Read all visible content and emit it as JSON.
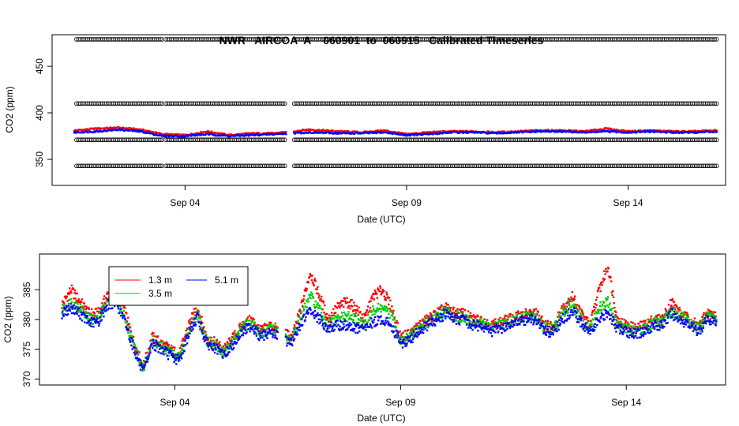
{
  "chart_data": [
    {
      "type": "scatter",
      "title": "NWR   AIRCOA  A    060901  to  060915   Calibrated Timeseries",
      "xlabel": "Date (UTC)",
      "ylabel": "CO2 (ppm)",
      "xlim": [
        1.0,
        16.2
      ],
      "ylim": [
        322,
        484
      ],
      "xticks": [
        {
          "value": 4,
          "label": "Sep 04"
        },
        {
          "value": 9,
          "label": "Sep 09"
        },
        {
          "value": 14,
          "label": "Sep 14"
        }
      ],
      "yticks": [
        350,
        400,
        450
      ],
      "gaps": [
        [
          6.28,
          6.45
        ]
      ],
      "standards": [
        {
          "name": "std-high",
          "value": 479,
          "color": "#000000",
          "marker": "circle"
        },
        {
          "name": "std-mid",
          "value": 410,
          "color": "#000000",
          "marker": "circle"
        },
        {
          "name": "std-low2",
          "value": 371,
          "color": "#000000",
          "marker": "circle"
        },
        {
          "name": "std-low",
          "value": 343,
          "color": "#000000",
          "marker": "circle"
        }
      ],
      "series": [
        {
          "name": "sample-red",
          "color": "#ff0000",
          "x": [
            1.5,
            2.0,
            2.5,
            3.0,
            3.5,
            4.0,
            4.5,
            5.0,
            5.5,
            6.0,
            6.8,
            7.5,
            8.0,
            8.5,
            9.0,
            9.5,
            10.0,
            10.5,
            11.0,
            11.5,
            12.0,
            12.5,
            13.0,
            13.5,
            14.0,
            14.5,
            15.0,
            15.5,
            16.0
          ],
          "y": [
            381,
            383,
            384,
            382,
            377,
            376,
            380,
            376,
            378,
            378,
            382,
            380,
            379,
            381,
            377,
            379,
            380,
            380,
            379,
            380,
            381,
            381,
            380,
            383,
            380,
            381,
            380,
            380,
            381
          ]
        },
        {
          "name": "sample-blue",
          "color": "#0000ff",
          "x": [
            1.5,
            2.0,
            2.5,
            3.0,
            3.5,
            4.0,
            4.5,
            5.0,
            5.5,
            6.0,
            6.8,
            7.5,
            8.0,
            8.5,
            9.0,
            9.5,
            10.0,
            10.5,
            11.0,
            11.5,
            12.0,
            12.5,
            13.0,
            13.5,
            14.0,
            14.5,
            15.0,
            15.5,
            16.0
          ],
          "y": [
            379,
            380,
            382,
            380,
            375,
            375,
            377,
            375,
            376,
            377,
            379,
            378,
            378,
            379,
            376,
            377,
            379,
            379,
            378,
            379,
            380,
            380,
            379,
            380,
            379,
            380,
            379,
            379,
            380
          ]
        }
      ]
    },
    {
      "type": "scatter",
      "title": "",
      "xlabel": "Date (UTC)",
      "ylabel": "CO2 (ppm)",
      "xlim": [
        1.0,
        16.2
      ],
      "ylim": [
        369,
        391
      ],
      "xticks": [
        {
          "value": 4,
          "label": "Sep 04"
        },
        {
          "value": 9,
          "label": "Sep 09"
        },
        {
          "value": 14,
          "label": "Sep 14"
        }
      ],
      "yticks": [
        370,
        375,
        380,
        385
      ],
      "gaps": [
        [
          6.28,
          6.45
        ]
      ],
      "legend": {
        "placement": "top-left",
        "entries": [
          {
            "label": "1.3 m",
            "color": "#ff0000"
          },
          {
            "label": "3.5 m",
            "color": "#00cc00"
          },
          {
            "label": "5.1 m",
            "color": "#0000ff"
          }
        ]
      },
      "series": [
        {
          "name": "1.3 m",
          "color": "#ff0000",
          "x": [
            1.5,
            1.7,
            1.9,
            2.1,
            2.3,
            2.5,
            2.7,
            2.9,
            3.1,
            3.3,
            3.5,
            3.7,
            3.9,
            4.1,
            4.3,
            4.5,
            4.7,
            4.9,
            5.1,
            5.3,
            5.5,
            5.7,
            5.9,
            6.1,
            6.6,
            6.8,
            7.0,
            7.2,
            7.4,
            7.6,
            7.8,
            8.0,
            8.2,
            8.4,
            8.6,
            8.8,
            9.0,
            9.2,
            9.4,
            9.6,
            9.8,
            10.0,
            10.2,
            10.4,
            10.6,
            10.8,
            11.0,
            11.2,
            11.4,
            11.6,
            11.8,
            12.0,
            12.2,
            12.4,
            12.6,
            12.8,
            13.0,
            13.2,
            13.4,
            13.6,
            13.8,
            14.0,
            14.2,
            14.4,
            14.6,
            14.8,
            15.0,
            15.2,
            15.4,
            15.6,
            15.8,
            16.0
          ],
          "y": [
            382.5,
            385,
            383,
            381,
            381,
            384,
            386,
            381,
            376,
            372,
            377,
            376,
            375,
            374,
            379,
            382,
            377,
            376,
            375,
            377,
            379,
            380,
            378,
            379,
            377,
            382,
            388,
            384,
            380,
            382,
            383,
            382,
            380,
            384,
            385,
            382,
            377,
            377.5,
            379,
            380,
            381,
            382,
            381,
            381,
            380,
            380,
            379,
            379.5,
            380,
            380.5,
            381,
            381,
            379,
            379,
            382,
            384,
            381,
            379,
            385,
            389,
            380,
            379,
            378.5,
            379,
            380,
            380,
            383,
            381,
            380,
            379,
            381,
            380.5
          ]
        },
        {
          "name": "3.5 m",
          "color": "#00cc00",
          "x": [
            1.5,
            1.7,
            1.9,
            2.1,
            2.3,
            2.5,
            2.7,
            2.9,
            3.1,
            3.3,
            3.5,
            3.7,
            3.9,
            4.1,
            4.3,
            4.5,
            4.7,
            4.9,
            5.1,
            5.3,
            5.5,
            5.7,
            5.9,
            6.1,
            6.6,
            6.8,
            7.0,
            7.2,
            7.4,
            7.6,
            7.8,
            8.0,
            8.2,
            8.4,
            8.6,
            8.8,
            9.0,
            9.2,
            9.4,
            9.6,
            9.8,
            10.0,
            10.2,
            10.4,
            10.6,
            10.8,
            11.0,
            11.2,
            11.4,
            11.6,
            11.8,
            12.0,
            12.2,
            12.4,
            12.6,
            12.8,
            13.0,
            13.2,
            13.4,
            13.6,
            13.8,
            14.0,
            14.2,
            14.4,
            14.6,
            14.8,
            15.0,
            15.2,
            15.4,
            15.6,
            15.8,
            16.0
          ],
          "y": [
            381.5,
            383,
            382,
            380,
            380,
            383,
            384,
            380,
            375.5,
            371.5,
            376.5,
            375.5,
            374.5,
            373.5,
            378,
            381,
            376.5,
            375.5,
            374.5,
            376.5,
            378.5,
            379.5,
            377.5,
            378.5,
            376.5,
            380.5,
            384,
            381.5,
            379,
            380,
            380.5,
            380,
            379,
            381.5,
            382,
            380.5,
            376.5,
            377,
            378.5,
            379.5,
            380.5,
            381.5,
            380.5,
            380.5,
            379.5,
            379.5,
            378.5,
            379,
            379.5,
            380,
            380.5,
            380.5,
            378.5,
            378.5,
            381,
            382.5,
            380,
            378.5,
            382,
            383,
            379,
            378.5,
            378,
            378.5,
            379.5,
            379.5,
            381.5,
            380.5,
            379.5,
            378.5,
            380.5,
            380
          ]
        },
        {
          "name": "5.1 m",
          "color": "#0000ff",
          "x": [
            1.5,
            1.7,
            1.9,
            2.1,
            2.3,
            2.5,
            2.7,
            2.9,
            3.1,
            3.3,
            3.5,
            3.7,
            3.9,
            4.1,
            4.3,
            4.5,
            4.7,
            4.9,
            5.1,
            5.3,
            5.5,
            5.7,
            5.9,
            6.1,
            6.6,
            6.8,
            7.0,
            7.2,
            7.4,
            7.6,
            7.8,
            8.0,
            8.2,
            8.4,
            8.6,
            8.8,
            9.0,
            9.2,
            9.4,
            9.6,
            9.8,
            10.0,
            10.2,
            10.4,
            10.6,
            10.8,
            11.0,
            11.2,
            11.4,
            11.6,
            11.8,
            12.0,
            12.2,
            12.4,
            12.6,
            12.8,
            13.0,
            13.2,
            13.4,
            13.6,
            13.8,
            14.0,
            14.2,
            14.4,
            14.6,
            14.8,
            15.0,
            15.2,
            15.4,
            15.6,
            15.8,
            16.0
          ],
          "y": [
            381,
            382,
            381,
            379.5,
            379.5,
            382.5,
            383,
            379.5,
            375,
            371,
            376,
            375,
            374,
            373,
            377.5,
            380.5,
            376,
            375,
            374,
            376,
            378,
            379,
            377,
            378,
            376,
            379.5,
            381.5,
            380,
            378.5,
            379,
            379,
            378.5,
            378.5,
            379.5,
            380,
            379,
            376,
            376.5,
            378,
            379,
            380,
            381,
            380,
            380,
            379,
            379,
            378,
            378.5,
            379,
            379.5,
            380,
            380,
            378,
            378,
            380,
            381.5,
            379.5,
            378,
            380,
            381,
            378.5,
            378,
            377.5,
            378,
            379,
            379,
            381,
            380,
            379,
            378,
            380,
            379.5
          ]
        }
      ]
    }
  ]
}
